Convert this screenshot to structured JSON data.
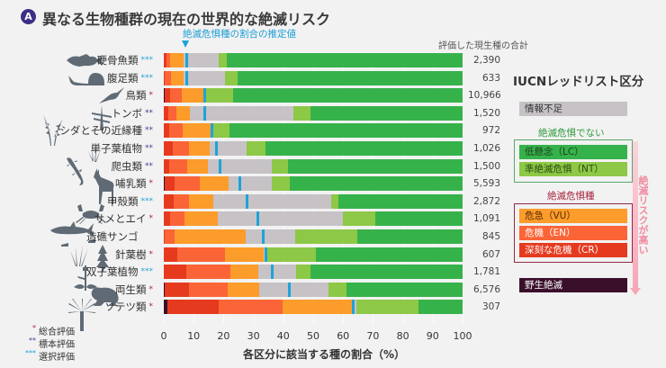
{
  "panel_badge": "A",
  "title": "異なる生物種群の現在の世界的な絶滅リスク",
  "marker_label": "絶滅危惧種の割合の推定値",
  "total_header": "評価した現生種の合計",
  "colors": {
    "EX": "#3a0f2a",
    "CR": "#e63a1f",
    "EN": "#fb6437",
    "VU": "#fc9c2b",
    "DD": "#c6c2c6",
    "NT": "#8dc846",
    "LC": "#36b24a",
    "marker": "#1ea3d9",
    "star1": "#a8233c",
    "star2": "#3d3f96",
    "star3": "#1ea3d9"
  },
  "legend": {
    "title": "IUCNレッドリスト区分",
    "dd": "情報不足",
    "not_threatened_title": "絶滅危惧でない",
    "lc": "低懸念（LC）",
    "nt": "準絶滅危惧（NT）",
    "threatened_title": "絶滅危惧種",
    "vu": "危急（VU）",
    "en": "危機（EN）",
    "cr": "深刻な危機（CR）",
    "ex": "野生絶滅",
    "risk_arrow": "絶滅リスクが高い"
  },
  "notes": [
    {
      "stars": "*",
      "label": "総合評価"
    },
    {
      "stars": "**",
      "label": "標本評価"
    },
    {
      "stars": "***",
      "label": "選択評価"
    }
  ],
  "chart_data": {
    "type": "bar",
    "orientation": "horizontal-stacked",
    "title": "異なる生物種群の現在の世界的な絶滅リスク",
    "xlabel": "各区分に該当する種の割合（%）",
    "xlim": [
      0,
      100
    ],
    "xticks": [
      "0",
      "10",
      "20",
      "30",
      "40",
      "50",
      "60",
      "70",
      "80",
      "90",
      "100"
    ],
    "segment_order": [
      "EX",
      "CR",
      "EN",
      "VU",
      "DD",
      "NT",
      "LC"
    ],
    "categories": [
      {
        "name": "硬骨魚類",
        "stars": "***",
        "total": "2,390",
        "EX": 0,
        "CR": 1.0,
        "EN": 1.1,
        "VU": 4.5,
        "DD": 11.8,
        "NT": 2.7,
        "LC": 78.9,
        "threatened_estimate": 7.4
      },
      {
        "name": "腹足類",
        "stars": "***",
        "total": "633",
        "EX": 0,
        "CR": 0.2,
        "EN": 2.1,
        "VU": 4.3,
        "DD": 13.8,
        "NT": 4.3,
        "LC": 75.3,
        "threatened_estimate": 7.6
      },
      {
        "name": "鳥類",
        "stars": "*",
        "total": "10,966",
        "EX": 0.3,
        "CR": 1.7,
        "EN": 4.0,
        "VU": 7.4,
        "DD": 0.4,
        "NT": 9.3,
        "LC": 76.9,
        "threatened_estimate": 13.7
      },
      {
        "name": "トンボ",
        "stars": "**",
        "total": "1,520",
        "EX": 0,
        "CR": 1.5,
        "EN": 2.7,
        "VU": 4.6,
        "DD": 34.6,
        "NT": 5.8,
        "LC": 50.8,
        "threatened_estimate": 13.7
      },
      {
        "name": "シダとその近縁種",
        "stars": "**",
        "total": "972",
        "EX": 0,
        "CR": 1.8,
        "EN": 4.6,
        "VU": 9.2,
        "DD": 0.9,
        "NT": 5.4,
        "LC": 78.1,
        "threatened_estimate": 16.1
      },
      {
        "name": "単子葉植物",
        "stars": "**",
        "total": "1,026",
        "EX": 0,
        "CR": 3.0,
        "EN": 5.5,
        "VU": 6.9,
        "DD": 12.2,
        "NT": 6.3,
        "LC": 66.1,
        "threatened_estimate": 17.5
      },
      {
        "name": "爬虫類",
        "stars": "**",
        "total": "1,500",
        "EX": 0,
        "CR": 1.7,
        "EN": 6.0,
        "VU": 7.1,
        "DD": 21.3,
        "NT": 5.4,
        "LC": 58.5,
        "threatened_estimate": 18.8
      },
      {
        "name": "哺乳類",
        "stars": "*",
        "total": "5,593",
        "EX": 0.2,
        "CR": 3.4,
        "EN": 8.4,
        "VU": 9.7,
        "DD": 14.4,
        "NT": 6.1,
        "LC": 57.8,
        "threatened_estimate": 25.3
      },
      {
        "name": "甲殻類",
        "stars": "***",
        "total": "2,872",
        "EX": 0,
        "CR": 3.3,
        "EN": 5.2,
        "VU": 8.2,
        "DD": 39.4,
        "NT": 2.4,
        "LC": 41.5,
        "threatened_estimate": 27.7
      },
      {
        "name": "サメとエイ",
        "stars": "*",
        "total": "1,091",
        "EX": 0,
        "CR": 2.1,
        "EN": 4.7,
        "VU": 11.2,
        "DD": 42.0,
        "NT": 10.8,
        "LC": 29.2,
        "threatened_estimate": 31.2
      },
      {
        "name": "造礁サンゴ",
        "stars": "",
        "total": "845",
        "EX": 0,
        "CR": 0.2,
        "EN": 3.4,
        "VU": 23.9,
        "DD": 16.5,
        "NT": 20.8,
        "LC": 35.2,
        "threatened_estimate": 33.0
      },
      {
        "name": "針葉樹",
        "stars": "*",
        "total": "607",
        "EX": 0,
        "CR": 4.6,
        "EN": 15.9,
        "VU": 12.9,
        "DD": 1.3,
        "NT": 16.3,
        "LC": 49.0,
        "threatened_estimate": 34.1
      },
      {
        "name": "双子葉植物",
        "stars": "***",
        "total": "1,781",
        "EX": 0,
        "CR": 7.6,
        "EN": 14.7,
        "VU": 9.2,
        "DD": 12.7,
        "NT": 5.0,
        "LC": 50.8,
        "threatened_estimate": 36.1
      },
      {
        "name": "両生類",
        "stars": "*",
        "total": "6,576",
        "EX": 0.2,
        "CR": 8.2,
        "EN": 13.1,
        "VU": 10.4,
        "DD": 23.1,
        "NT": 6.0,
        "LC": 39.0,
        "threatened_estimate": 41.8
      },
      {
        "name": "ソテツ類",
        "stars": "*",
        "total": "307",
        "EX": 1.2,
        "CR": 17.3,
        "EN": 21.3,
        "VU": 23.2,
        "DD": 1.5,
        "NT": 20.8,
        "LC": 14.7,
        "threatened_estimate": 63.3
      }
    ]
  }
}
